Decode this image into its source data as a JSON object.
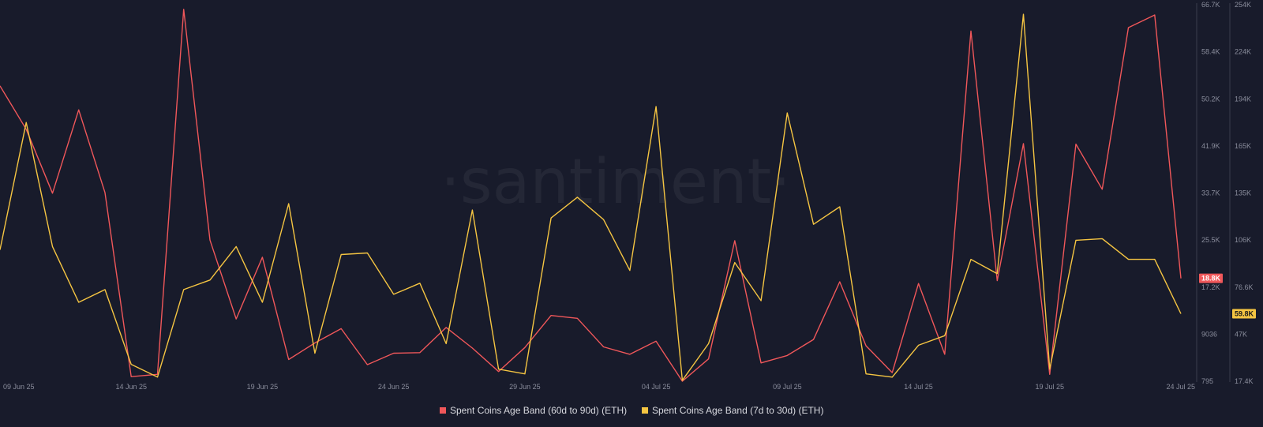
{
  "watermark": "·santiment·",
  "colors": {
    "background": "#181b2b",
    "series_60_90": "#f0575a",
    "series_7_30": "#f5c542",
    "tick_text": "#8a8d9c",
    "axis_line": "#3a3d4e"
  },
  "chart_data": {
    "type": "line",
    "x": [
      "2025-06-09",
      "2025-06-10",
      "2025-06-11",
      "2025-06-12",
      "2025-06-13",
      "2025-06-14",
      "2025-06-15",
      "2025-06-16",
      "2025-06-17",
      "2025-06-18",
      "2025-06-19",
      "2025-06-20",
      "2025-06-21",
      "2025-06-22",
      "2025-06-23",
      "2025-06-24",
      "2025-06-25",
      "2025-06-26",
      "2025-06-27",
      "2025-06-28",
      "2025-06-29",
      "2025-06-30",
      "2025-07-01",
      "2025-07-02",
      "2025-07-03",
      "2025-07-04",
      "2025-07-05",
      "2025-07-06",
      "2025-07-07",
      "2025-07-08",
      "2025-07-09",
      "2025-07-10",
      "2025-07-11",
      "2025-07-12",
      "2025-07-13",
      "2025-07-14",
      "2025-07-15",
      "2025-07-16",
      "2025-07-17",
      "2025-07-18",
      "2025-07-19",
      "2025-07-20",
      "2025-07-21",
      "2025-07-22",
      "2025-07-23",
      "2025-07-24"
    ],
    "series": [
      {
        "name": "Spent Coins Age Band (60d to 90d) (ETH)",
        "axis": "left",
        "color": "#f0575a",
        "values": [
          52500,
          44900,
          33700,
          48300,
          33800,
          1600,
          2000,
          65900,
          25500,
          11700,
          22500,
          4600,
          7500,
          10000,
          3700,
          5700,
          5800,
          10200,
          6600,
          2500,
          6700,
          12300,
          11800,
          6800,
          5500,
          7800,
          795,
          4700,
          25400,
          4000,
          5300,
          8100,
          18200,
          7000,
          2300,
          17900,
          5500,
          62100,
          18400,
          42400,
          2000,
          42300,
          34400,
          62700,
          64900,
          18800
        ]
      },
      {
        "name": "Spent Coins Age Band (7d to 30d) (ETH)",
        "axis": "right",
        "color": "#f5c542",
        "values": [
          100000,
          180000,
          102000,
          67000,
          75000,
          28000,
          20000,
          75000,
          81000,
          102000,
          67000,
          129000,
          35000,
          97000,
          98000,
          72000,
          79000,
          41000,
          125000,
          25000,
          22000,
          120000,
          133000,
          119000,
          87000,
          190000,
          18000,
          41000,
          92000,
          68000,
          186000,
          116000,
          127000,
          22000,
          20000,
          40000,
          46000,
          94000,
          85000,
          248000,
          25000,
          106000,
          107000,
          94000,
          94000,
          59800
        ]
      }
    ],
    "x_ticks": [
      "09 Jun 25",
      "14 Jun 25",
      "19 Jun 25",
      "24 Jun 25",
      "29 Jun 25",
      "04 Jul 25",
      "09 Jul 25",
      "14 Jul 25",
      "19 Jul 25",
      "24 Jul 25"
    ],
    "y_left": {
      "ticks": [
        "66.7K",
        "58.4K",
        "50.2K",
        "41.9K",
        "33.7K",
        "25.5K",
        "17.2K",
        "9036",
        "795"
      ],
      "ylim": [
        795,
        66700
      ]
    },
    "y_right": {
      "ticks": [
        "254K",
        "224K",
        "194K",
        "165K",
        "135K",
        "106K",
        "76.6K",
        "47K",
        "17.4K"
      ],
      "ylim": [
        17400,
        254000
      ]
    },
    "last_value_badges": {
      "left": "18.8K",
      "right": "59.8K"
    },
    "grid": false,
    "legend_position": "bottom-center",
    "title": "",
    "xlabel": "",
    "ylabel": ""
  }
}
